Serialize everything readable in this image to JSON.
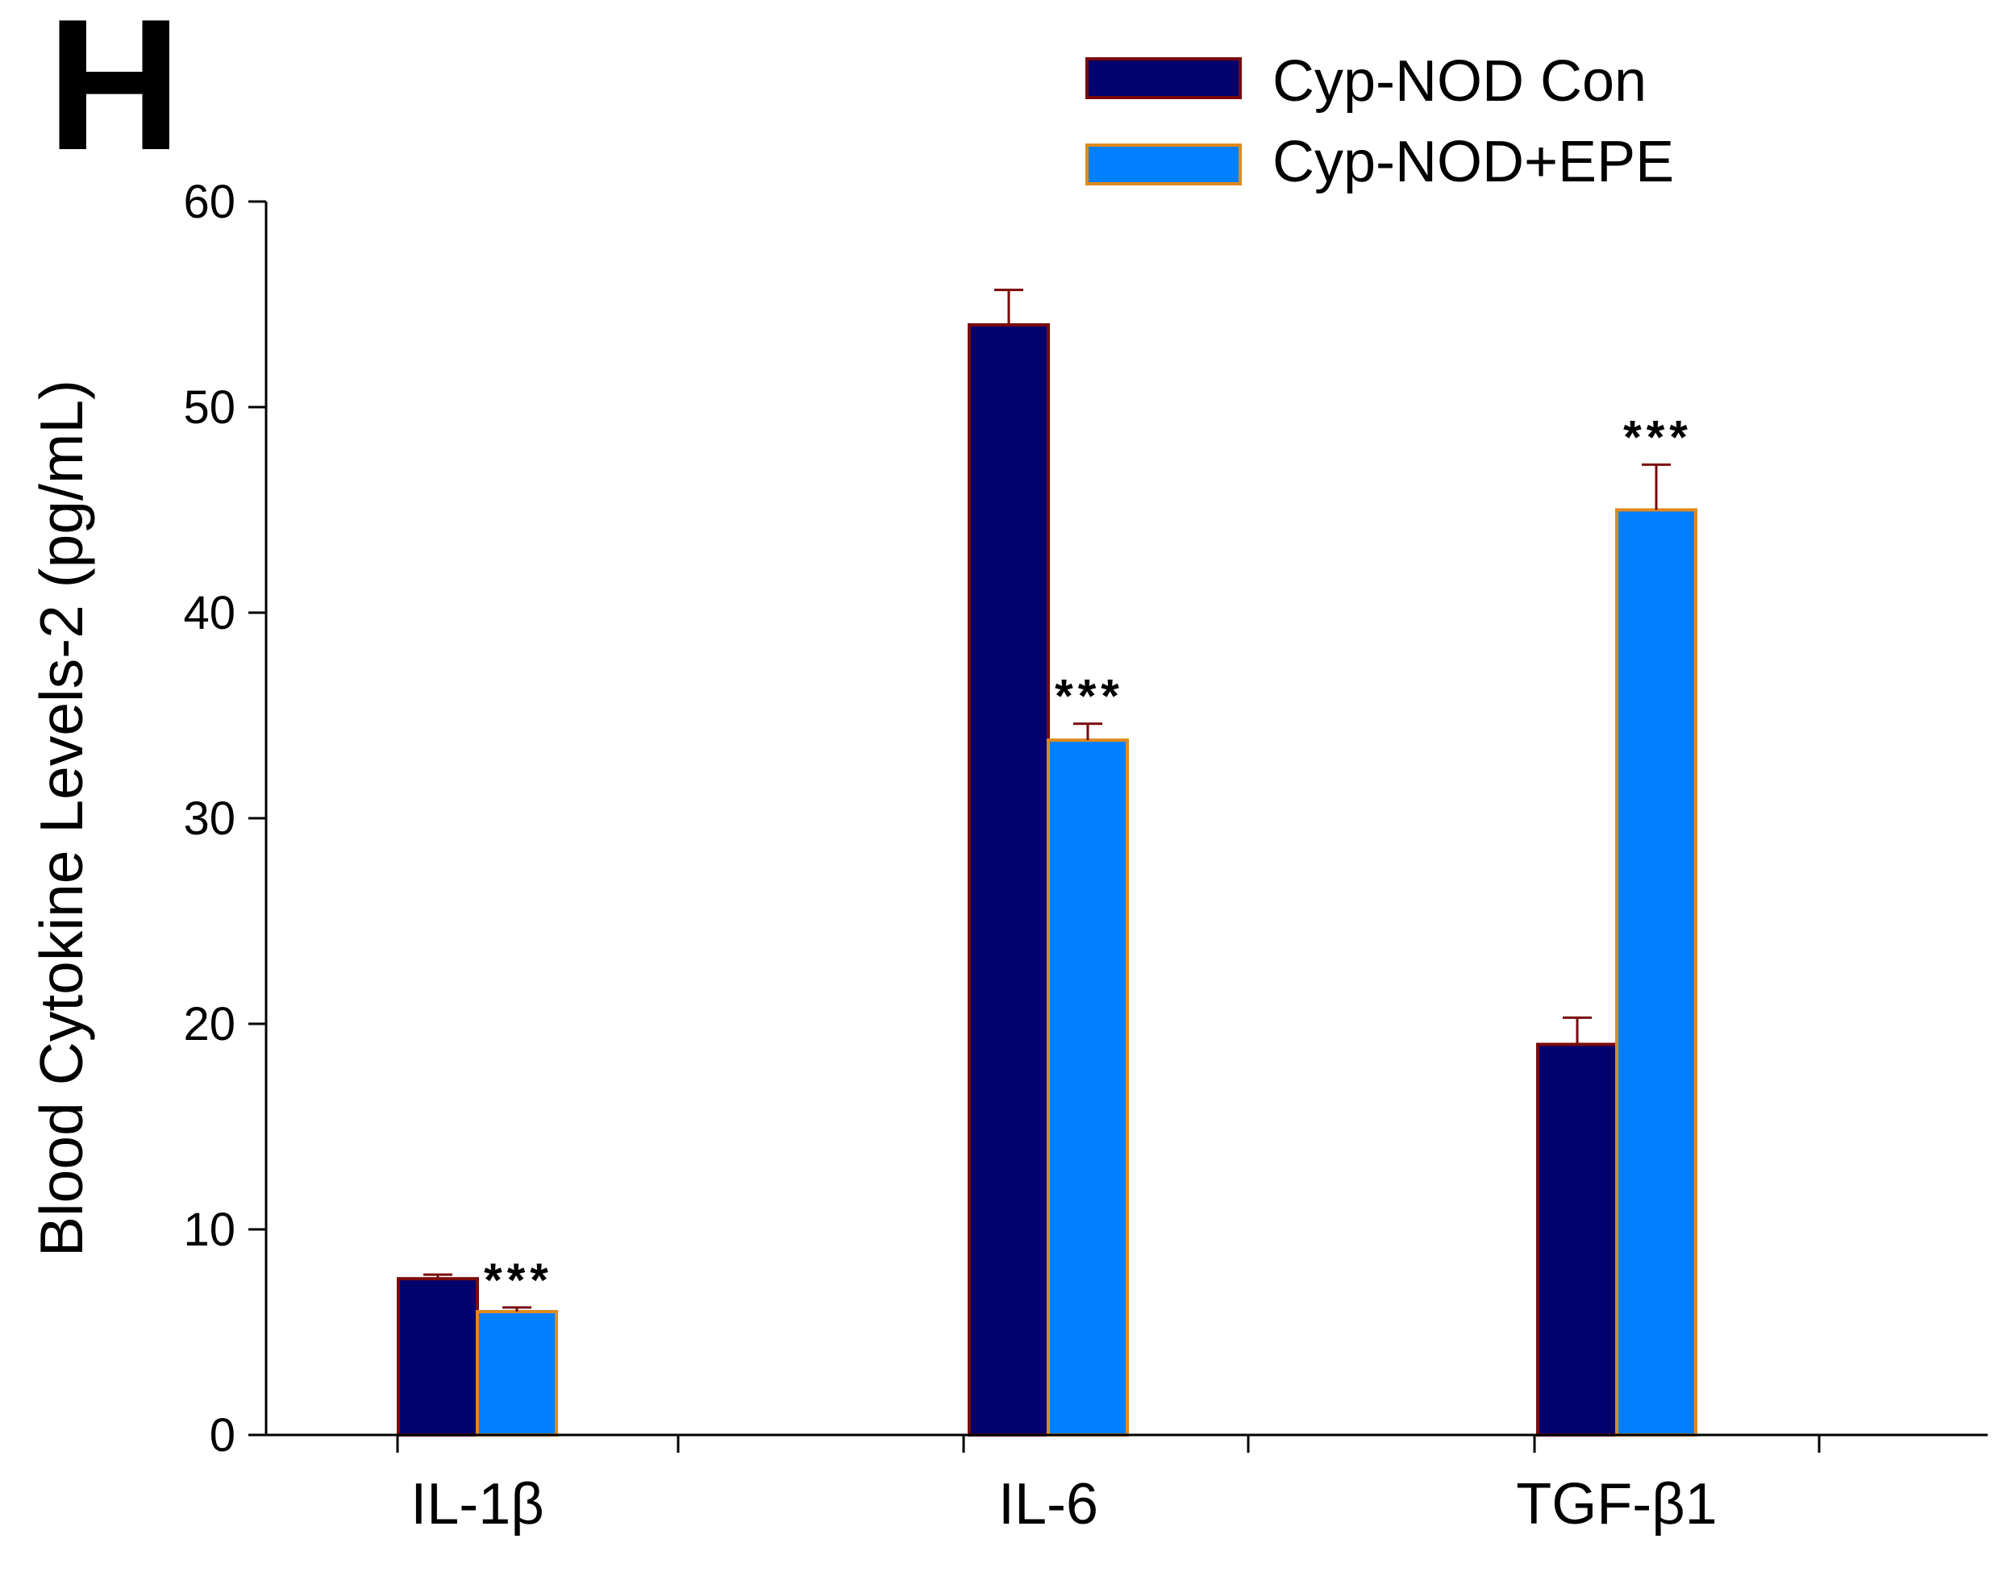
{
  "panel_label": "H",
  "colors": {
    "con_fill": "#02026f",
    "con_edge": "#7a0a0a",
    "epe_fill": "#0080fe",
    "epe_edge": "#e08a1e",
    "error_bar": "#7a0a0a",
    "axis": "#000000"
  },
  "chart_data": {
    "type": "bar",
    "title": "",
    "xlabel": "",
    "ylabel": "Blood Cytokine Levels-2 (pg/mL)",
    "ylim": [
      0,
      60
    ],
    "yticks": [
      0,
      10,
      20,
      30,
      40,
      50,
      60
    ],
    "categories": [
      "IL-1β",
      "IL-6",
      "TGF-β1"
    ],
    "legend_position": "top-right",
    "series": [
      {
        "name": "Cyp-NOD Con",
        "values": [
          7.6,
          54.0,
          19.0
        ],
        "errors": [
          0.2,
          1.7,
          1.3
        ],
        "significance": [
          "",
          "",
          ""
        ]
      },
      {
        "name": "Cyp-NOD+EPE",
        "values": [
          6.0,
          33.8,
          45.0
        ],
        "errors": [
          0.2,
          0.8,
          2.2
        ],
        "significance": [
          "***",
          "***",
          "***"
        ]
      }
    ]
  }
}
